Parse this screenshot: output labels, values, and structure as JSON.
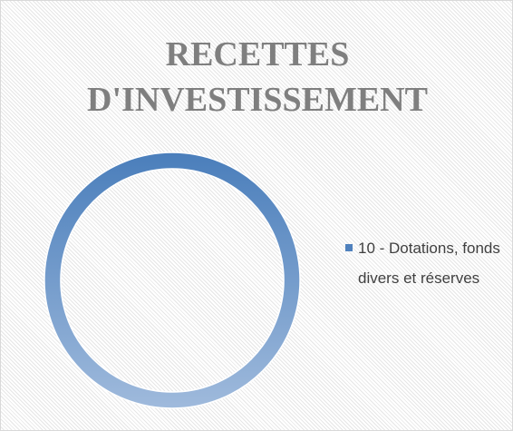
{
  "chart_data": {
    "type": "donut",
    "title": "RECETTES D'INVESTISSEMENT",
    "categories": [
      "10 - Dotations, fonds divers et réserves"
    ],
    "values": [
      100
    ],
    "colors": [
      "#4f81bd"
    ]
  }
}
